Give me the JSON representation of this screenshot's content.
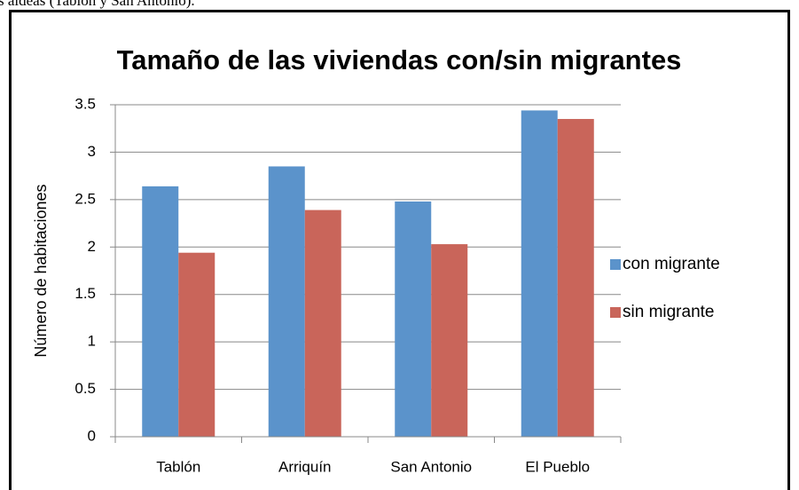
{
  "caption": "s aldeas (Tablón y San Antonio).",
  "chart_data": {
    "type": "bar",
    "title": "Tamaño de las viviendas con/sin migrantes",
    "ylabel": "Número de habitaciones",
    "categories": [
      "Tablón",
      "Arriquín",
      "San Antonio",
      "El Pueblo"
    ],
    "series": [
      {
        "name": "con migrante",
        "color": "#5b93cb",
        "values": [
          2.64,
          2.85,
          2.48,
          3.44
        ]
      },
      {
        "name": "sin migrante",
        "color": "#c9655a",
        "values": [
          1.94,
          2.39,
          2.03,
          3.35
        ]
      }
    ],
    "ylim": [
      0,
      3.5
    ],
    "yticks": [
      0,
      0.5,
      1,
      1.5,
      2,
      2.5,
      3,
      3.5
    ],
    "grid": true,
    "legend": "right"
  }
}
